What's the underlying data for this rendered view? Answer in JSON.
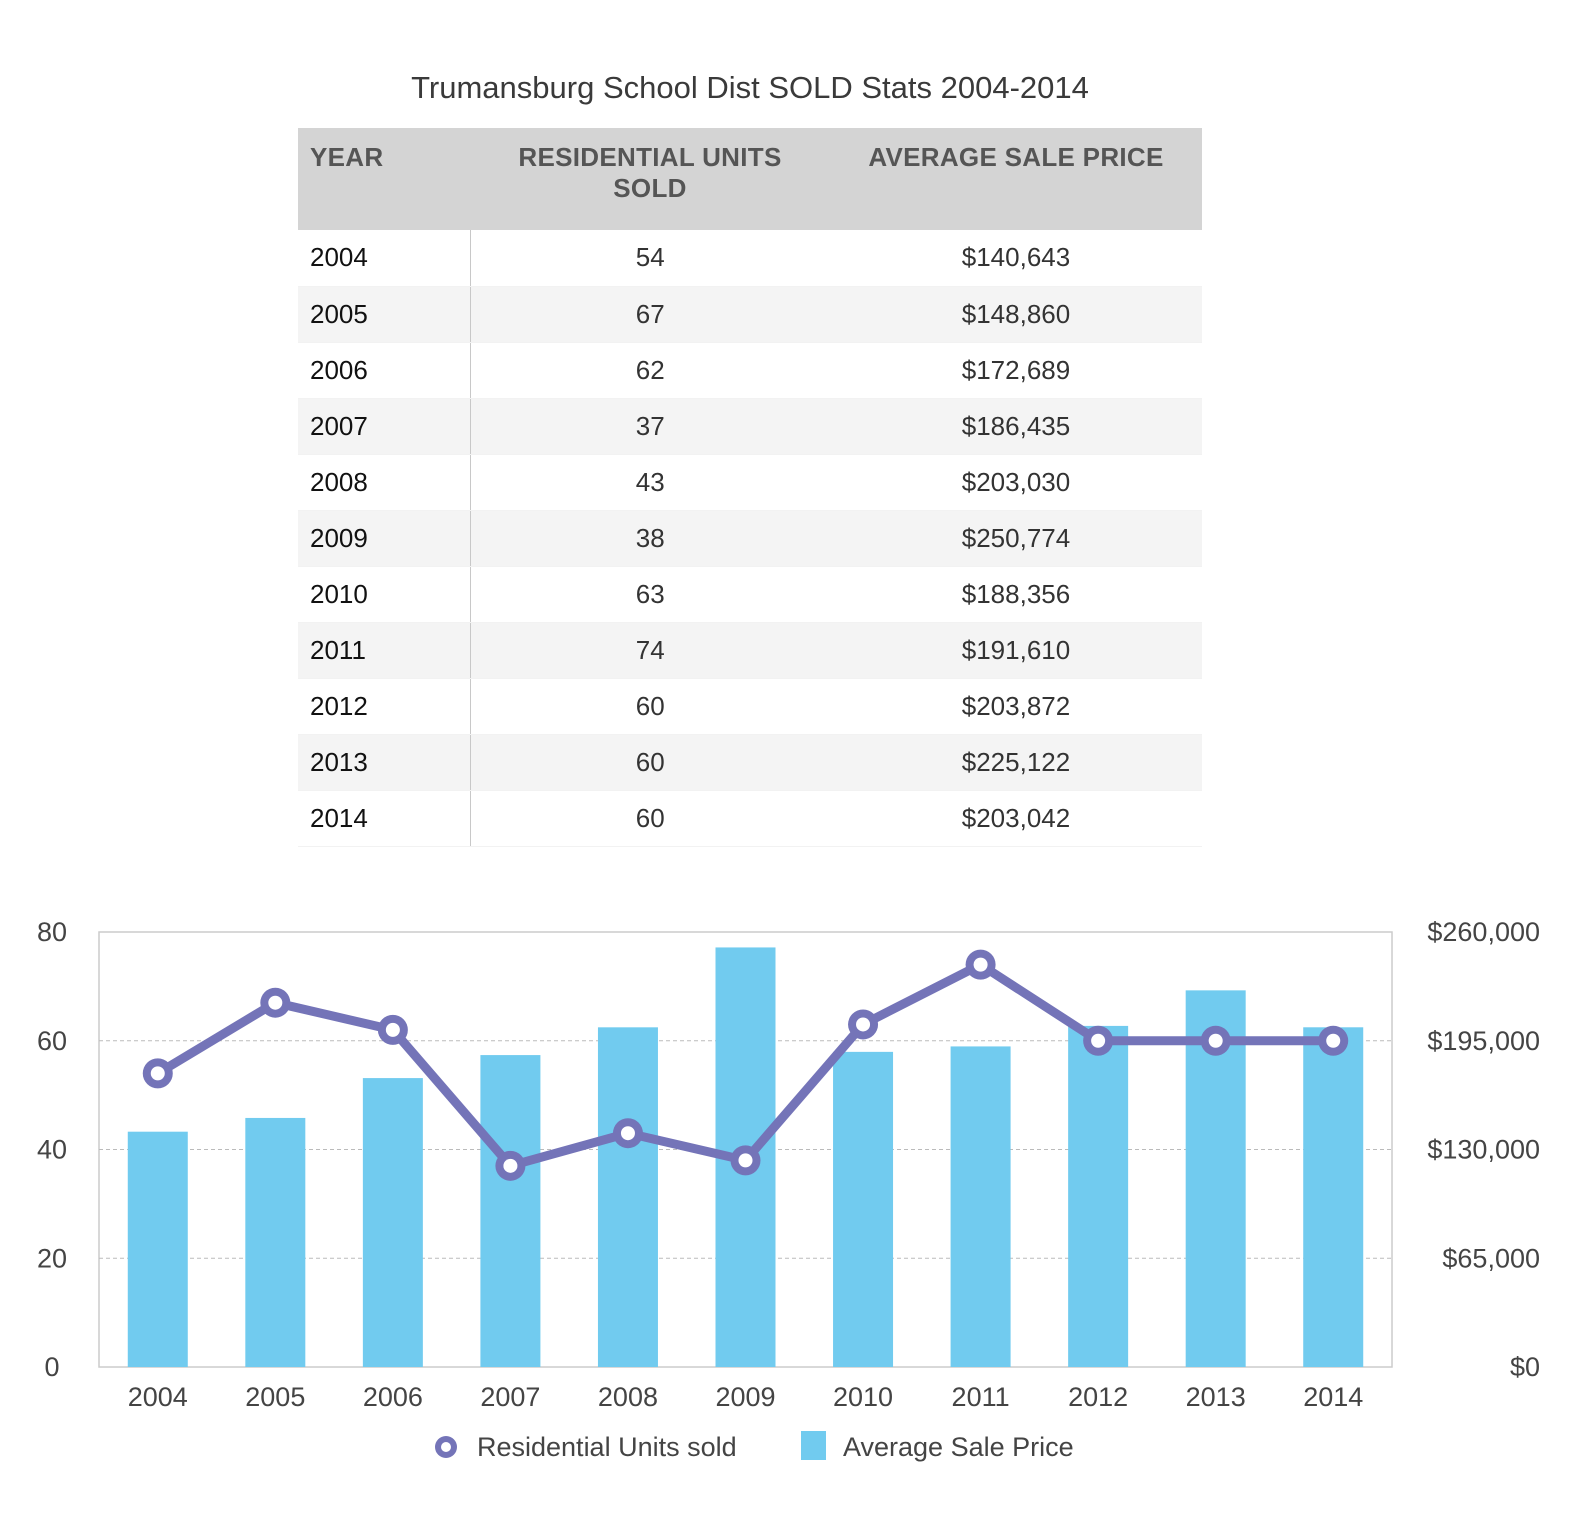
{
  "title": "Trumansburg School Dist SOLD Stats  2004-2014",
  "table": {
    "headers": [
      "YEAR",
      "RESIDENTIAL UNITS SOLD",
      "AVERAGE SALE PRICE"
    ],
    "rows": [
      [
        "2004",
        "54",
        "$140,643"
      ],
      [
        "2005",
        "67",
        "$148,860"
      ],
      [
        "2006",
        "62",
        "$172,689"
      ],
      [
        "2007",
        "37",
        "$186,435"
      ],
      [
        "2008",
        "43",
        "$203,030"
      ],
      [
        "2009",
        "38",
        "$250,774"
      ],
      [
        "2010",
        "63",
        "$188,356"
      ],
      [
        "2011",
        "74",
        "$191,610"
      ],
      [
        "2012",
        "60",
        "$203,872"
      ],
      [
        "2013",
        "60",
        "$225,122"
      ],
      [
        "2014",
        "60",
        "$203,042"
      ]
    ]
  },
  "chart_data": {
    "type": "bar",
    "categories": [
      "2004",
      "2005",
      "2006",
      "2007",
      "2008",
      "2009",
      "2010",
      "2011",
      "2012",
      "2013",
      "2014"
    ],
    "series": [
      {
        "name": "Residential Units sold",
        "type": "line",
        "axis": "left",
        "color": "#7474b8",
        "values": [
          54,
          67,
          62,
          37,
          43,
          38,
          63,
          74,
          60,
          60,
          60
        ]
      },
      {
        "name": "Average Sale Price",
        "type": "bar",
        "axis": "right",
        "color": "#71cbef",
        "values": [
          140643,
          148860,
          172689,
          186435,
          203030,
          250774,
          188356,
          191610,
          203872,
          225122,
          203042
        ]
      }
    ],
    "y_left": {
      "ylim": [
        0,
        80
      ],
      "ticks": [
        "0",
        "20",
        "40",
        "60",
        "80"
      ]
    },
    "y_right": {
      "ylim": [
        0,
        260000
      ],
      "ticks": [
        "$0",
        "$65,000",
        "$130,000",
        "$195,000",
        "$260,000"
      ]
    },
    "grid": "horizontal dashed",
    "legend_position": "bottom"
  }
}
